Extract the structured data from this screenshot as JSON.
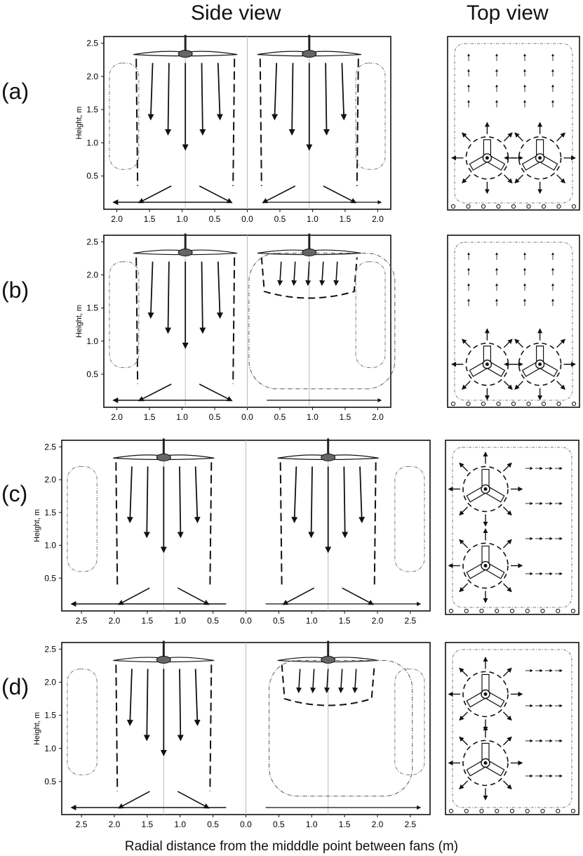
{
  "headers": {
    "side_view": "Side view",
    "top_view": "Top view"
  },
  "panel_labels": [
    "(a)",
    "(b)",
    "(c)",
    "(d)"
  ],
  "y_axis_label": "Height, m",
  "y_ticks": [
    "0.5",
    "1.0",
    "1.5",
    "2.0",
    "2.5"
  ],
  "x_ticks_ab": [
    "2.0",
    "1.5",
    "1.0",
    "0.5",
    "0.0",
    "0.5",
    "1.0",
    "1.5",
    "2.0"
  ],
  "x_ticks_cd": [
    "2.5",
    "2.0",
    "1.5",
    "1.0",
    "0.5",
    "0.0",
    "0.5",
    "1.0",
    "1.5",
    "2.0",
    "2.5"
  ],
  "x_axis_label": "Radial distance from the midddle point between fans (m)"
}
